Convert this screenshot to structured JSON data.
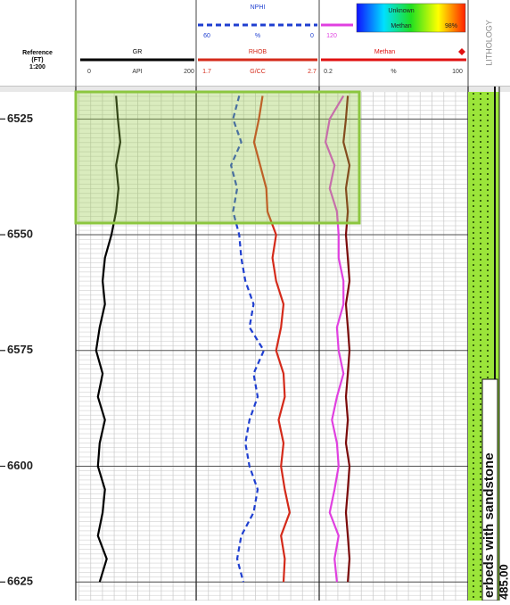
{
  "chart_data": {
    "type": "well-log",
    "depth_header": [
      "Reference",
      "(FT)",
      "1:200"
    ],
    "ylim": [
      6518,
      6629
    ],
    "yticks": [
      6525,
      6550,
      6575,
      6600,
      6625
    ],
    "depths": [
      6520,
      6525,
      6530,
      6535,
      6540,
      6545,
      6550,
      6555,
      6560,
      6565,
      6570,
      6575,
      6580,
      6585,
      6590,
      6595,
      6600,
      6605,
      6610,
      6615,
      6620,
      6625
    ],
    "tracks": [
      {
        "series": [
          {
            "name": "GR",
            "unit": "API",
            "xlim": [
              0,
              200
            ],
            "color": "#000000",
            "values": [
              64,
              67,
              71,
              64,
              68,
              64,
              56,
              45,
              41,
              45,
              36,
              30,
              41,
              33,
              45,
              36,
              33,
              45,
              41,
              33,
              48,
              36
            ]
          }
        ]
      },
      {
        "series": [
          {
            "name": "NPHI",
            "unit": "%",
            "xlim": [
              60,
              0
            ],
            "color": "#1f3fd0",
            "dashed": true,
            "values": [
              39,
              42,
              38,
              43,
              40,
              42,
              39,
              38,
              36,
              32,
              34,
              27,
              32,
              30,
              34,
              36,
              34,
              30,
              32,
              38,
              40,
              37
            ]
          },
          {
            "name": "RHOB",
            "unit": "G/CC",
            "xlim": [
              1.7,
              2.7
            ],
            "color": "#d42a1a",
            "values": [
              2.24,
              2.21,
              2.17,
              2.22,
              2.27,
              2.28,
              2.35,
              2.32,
              2.35,
              2.41,
              2.39,
              2.35,
              2.41,
              2.42,
              2.37,
              2.41,
              2.39,
              2.42,
              2.46,
              2.39,
              2.42,
              2.41
            ]
          }
        ]
      },
      {
        "unit": "%",
        "xlim": [
          0.2,
          100
        ],
        "log": true,
        "series": [
          {
            "scale_start": 120,
            "color": "#e040e0",
            "values": [
              0.55,
              0.31,
              0.26,
              0.38,
              0.31,
              0.42,
              0.45,
              0.45,
              0.55,
              0.55,
              0.42,
              0.45,
              0.55,
              0.42,
              0.34,
              0.42,
              0.45,
              0.38,
              0.31,
              0.45,
              0.38,
              0.42
            ]
          },
          {
            "name": "Methan",
            "color": "#7a0a0a",
            "legend_color": "#e01010",
            "values": [
              0.66,
              0.61,
              0.55,
              0.71,
              0.61,
              0.66,
              0.61,
              0.66,
              0.71,
              0.61,
              0.66,
              0.71,
              0.66,
              0.61,
              0.66,
              0.61,
              0.71,
              0.66,
              0.61,
              0.66,
              0.71,
              0.66
            ]
          }
        ]
      }
    ],
    "color_scale": {
      "labels": [
        "Unknown",
        "Methan"
      ],
      "max": {
        "value": 98,
        "label": "98%"
      },
      "colors": [
        "#1010ff",
        "#00e0ff",
        "#20e020",
        "#ffff00",
        "#ff2000"
      ]
    },
    "lithology": {
      "title": "LITHOLOGY",
      "color": "#9be53a",
      "annotation": "erbeds with sandstone",
      "annotation_depth": "485.00"
    }
  }
}
